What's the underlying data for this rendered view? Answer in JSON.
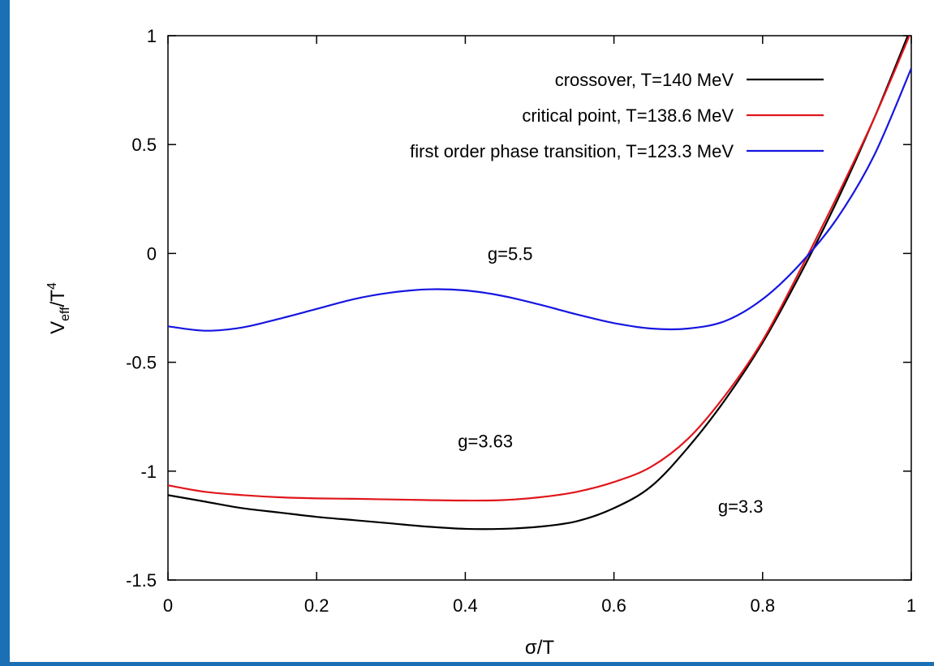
{
  "colors": {
    "background": "#1a6fb5",
    "panel": "#ffffff",
    "crossover": "#000000",
    "critical": "#e0161c",
    "first_order": "#1616e0"
  },
  "chart_data": {
    "type": "line",
    "title": "",
    "xlabel": "σ/T",
    "ylabel_main": "V",
    "ylabel_sub": "eff",
    "ylabel_den": "/T",
    "ylabel_sup": "4",
    "xlim": [
      0,
      1
    ],
    "ylim": [
      -1.5,
      1
    ],
    "grid": false,
    "legend_position": "top-right",
    "x_ticks": [
      {
        "value": 0,
        "label": "0"
      },
      {
        "value": 0.2,
        "label": "0.2"
      },
      {
        "value": 0.4,
        "label": "0.4"
      },
      {
        "value": 0.6,
        "label": "0.6"
      },
      {
        "value": 0.8,
        "label": "0.8"
      },
      {
        "value": 1,
        "label": "1"
      }
    ],
    "y_ticks": [
      {
        "value": -1.5,
        "label": "-1.5"
      },
      {
        "value": -1,
        "label": "-1"
      },
      {
        "value": -0.5,
        "label": "-0.5"
      },
      {
        "value": 0,
        "label": "0"
      },
      {
        "value": 0.5,
        "label": "0.5"
      },
      {
        "value": 1,
        "label": "1"
      }
    ],
    "series": [
      {
        "name": "crossover, T=140 MeV",
        "color": "#000000",
        "x": [
          0,
          0.05,
          0.1,
          0.15,
          0.2,
          0.25,
          0.3,
          0.35,
          0.4,
          0.45,
          0.5,
          0.55,
          0.6,
          0.65,
          0.7,
          0.75,
          0.8,
          0.85,
          0.9,
          0.95,
          1.0
        ],
        "y": [
          -1.11,
          -1.14,
          -1.17,
          -1.19,
          -1.21,
          -1.225,
          -1.24,
          -1.255,
          -1.265,
          -1.265,
          -1.255,
          -1.23,
          -1.17,
          -1.07,
          -0.89,
          -0.67,
          -0.41,
          -0.1,
          0.24,
          0.62,
          1.04
        ]
      },
      {
        "name": "critical point, T=138.6 MeV",
        "color": "#e0161c",
        "x": [
          0,
          0.05,
          0.1,
          0.15,
          0.2,
          0.25,
          0.3,
          0.35,
          0.4,
          0.45,
          0.5,
          0.55,
          0.6,
          0.65,
          0.7,
          0.75,
          0.8,
          0.85,
          0.9,
          0.95,
          1.0
        ],
        "y": [
          -1.065,
          -1.095,
          -1.11,
          -1.12,
          -1.125,
          -1.127,
          -1.13,
          -1.133,
          -1.135,
          -1.133,
          -1.12,
          -1.095,
          -1.05,
          -0.98,
          -0.85,
          -0.65,
          -0.4,
          -0.08,
          0.26,
          0.62,
          1.02
        ]
      },
      {
        "name": "first order phase transition, T=123.3 MeV",
        "color": "#1616e0",
        "x": [
          0,
          0.05,
          0.1,
          0.15,
          0.2,
          0.25,
          0.3,
          0.35,
          0.4,
          0.45,
          0.5,
          0.55,
          0.6,
          0.65,
          0.7,
          0.75,
          0.8,
          0.85,
          0.9,
          0.95,
          1.0
        ],
        "y": [
          -0.335,
          -0.355,
          -0.34,
          -0.3,
          -0.255,
          -0.21,
          -0.18,
          -0.165,
          -0.17,
          -0.195,
          -0.235,
          -0.28,
          -0.32,
          -0.345,
          -0.345,
          -0.31,
          -0.21,
          -0.05,
          0.16,
          0.45,
          0.85
        ]
      }
    ],
    "annotations": [
      {
        "text": "g=5.5",
        "x": 0.43,
        "y": -0.03
      },
      {
        "text": "g=3.63",
        "x": 0.39,
        "y": -0.89
      },
      {
        "text": "g=3.3",
        "x": 0.74,
        "y": -1.19
      }
    ]
  }
}
